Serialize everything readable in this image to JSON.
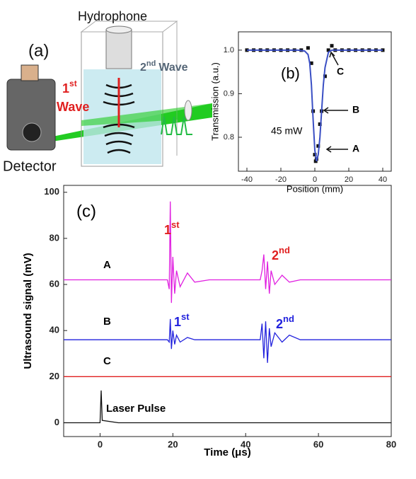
{
  "panel_a": {
    "title": "Hydrophone",
    "label": "(a)",
    "first": {
      "text": "1",
      "sup": "st",
      "word": "Wave"
    },
    "second": {
      "text": "2",
      "sup": "nd",
      "word": "Wave"
    },
    "detector": "Detector"
  },
  "chart_data": [
    {
      "type": "scatter",
      "xlabel": "Position (mm)",
      "ylabel": "Transmission (a.u.)",
      "xlim": [
        -45,
        45
      ],
      "ylim": [
        0.722,
        1.042
      ],
      "xticks": [
        -40,
        -20,
        0,
        20,
        40
      ],
      "yticks": [
        0.8,
        0.9,
        {
          "value": 1,
          "label": "1.0"
        }
      ],
      "annotations": [
        "(b)",
        "45 mW",
        "A",
        "B",
        "C"
      ],
      "series": [
        {
          "mode": "markers",
          "color": "#111111",
          "x": [
            -40,
            -36,
            -32,
            -28,
            -24,
            -20,
            -16,
            -12,
            -8,
            -4,
            -2,
            -1,
            0,
            0.5,
            1,
            2,
            3,
            4,
            6,
            8,
            10,
            12,
            16,
            20,
            24,
            28,
            32,
            36,
            40
          ],
          "values": [
            1.0,
            1.0,
            1.0,
            1.0,
            1.0,
            1.0,
            1.0,
            1.0,
            1.0,
            1.005,
            0.97,
            0.86,
            0.76,
            0.745,
            0.75,
            0.78,
            0.83,
            0.86,
            0.94,
            1.0,
            1.01,
            1.0,
            1.0,
            1.0,
            1.0,
            1.0,
            1.0,
            1.0,
            1.0
          ]
        },
        {
          "mode": "line",
          "color": "#3a4fc4",
          "x": [
            -40,
            -20,
            -10,
            -6,
            -4,
            -3,
            -2,
            -1,
            0,
            1,
            2,
            3,
            4,
            5,
            6,
            8,
            10,
            20,
            40
          ],
          "values": [
            1.0,
            1.0,
            1.0,
            0.998,
            0.99,
            0.97,
            0.92,
            0.84,
            0.77,
            0.745,
            0.76,
            0.8,
            0.86,
            0.92,
            0.96,
            0.995,
            1.0,
            1.0,
            1.0
          ]
        }
      ]
    },
    {
      "type": "line",
      "xlabel": "Time (μs)",
      "ylabel": "Ultrasound signal (mV)",
      "xlim": [
        -10,
        80
      ],
      "ylim": [
        -6,
        103
      ],
      "xticks": [
        0,
        20,
        40,
        60,
        80
      ],
      "yticks": [
        0,
        20,
        40,
        60,
        80,
        100
      ],
      "annotations": [
        "(c)",
        {
          "text": "1",
          "sup": "st"
        },
        {
          "text": "2",
          "sup": "nd"
        },
        "A",
        "B",
        "C",
        {
          "text": "1",
          "sup": "st"
        },
        {
          "text": "2",
          "sup": "nd"
        },
        "Laser Pulse"
      ],
      "x": [
        -10,
        -5,
        0,
        0.3,
        0.6,
        5,
        10,
        15,
        18.5,
        19,
        19.3,
        19.6,
        20,
        20.5,
        21,
        22,
        24,
        26,
        30,
        35,
        40,
        44,
        44.5,
        45,
        45.5,
        46,
        46.5,
        47,
        48,
        50,
        52,
        55,
        60,
        65,
        70,
        75,
        80
      ],
      "series": [
        {
          "color": "#e020e0",
          "values": [
            62,
            62,
            62,
            62,
            62,
            62,
            62,
            62,
            62,
            58,
            96,
            52,
            72,
            56,
            66,
            59,
            65,
            61,
            62,
            62,
            62,
            62,
            66,
            73,
            58,
            70,
            56,
            66,
            60,
            64,
            61,
            62,
            62,
            62,
            62,
            62,
            62
          ]
        },
        {
          "color": "#2222dd",
          "values": [
            36,
            36,
            36,
            36,
            36,
            36,
            36,
            36,
            36,
            35,
            45,
            32,
            40,
            34,
            38,
            35,
            37,
            36,
            36,
            36,
            36,
            36,
            43,
            28,
            44,
            26,
            41,
            33,
            39,
            35,
            38,
            36,
            36,
            36,
            36,
            36,
            36
          ]
        },
        {
          "color": "#e02020",
          "values": [
            20,
            20,
            20,
            20,
            20,
            20,
            20,
            20,
            20,
            20,
            20,
            20,
            20,
            20,
            20,
            20,
            20,
            20,
            20,
            20,
            20,
            20,
            20,
            20,
            20,
            20,
            20,
            20,
            20,
            20,
            20,
            20,
            20,
            20,
            20,
            20,
            20
          ]
        },
        {
          "color": "#111111",
          "values": [
            0,
            0,
            0,
            14,
            1,
            0,
            0,
            0,
            0,
            0,
            0,
            0,
            0,
            0,
            0,
            0,
            0,
            0,
            0,
            0,
            0,
            0,
            0,
            0,
            0,
            0,
            0,
            0,
            0,
            0,
            0,
            0,
            0,
            0,
            0,
            0,
            0
          ]
        }
      ]
    }
  ]
}
